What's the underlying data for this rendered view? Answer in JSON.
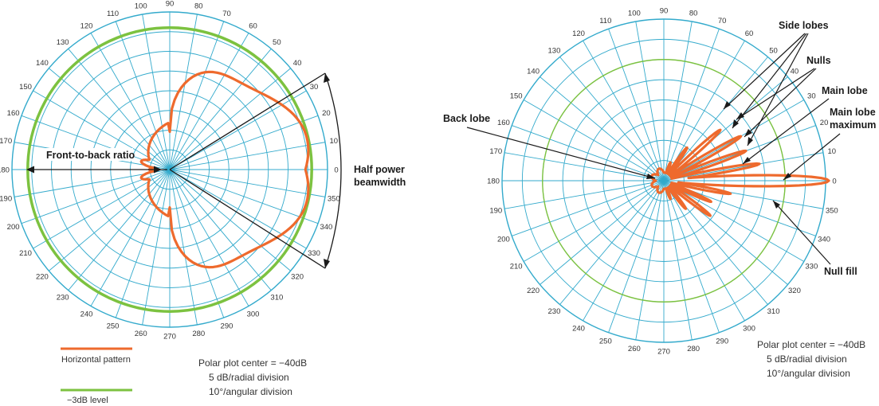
{
  "colors": {
    "grid": "#33aacc",
    "pattern": "#ee6a2d",
    "level_3db": "#7cc240",
    "annotation": "#1a1a1a",
    "text": "#333333"
  },
  "angle_labels": [
    "0",
    "10",
    "20",
    "30",
    "40",
    "50",
    "60",
    "70",
    "80",
    "90",
    "100",
    "110",
    "120",
    "130",
    "140",
    "150",
    "160",
    "170",
    "180",
    "190",
    "200",
    "210",
    "220",
    "230",
    "240",
    "250",
    "260",
    "270",
    "280",
    "290",
    "300",
    "310",
    "320",
    "330",
    "340",
    "350"
  ],
  "left_plot": {
    "annotations": {
      "front_to_back": "Front-to-back ratio",
      "half_power_line1": "Half power",
      "half_power_line2": "beamwidth"
    },
    "legend": {
      "horizontal_pattern": "Horizontal pattern",
      "level_3db": "−3dB level"
    },
    "notes": [
      "Polar plot center = −40dB",
      "5 dB/radial division",
      "10°/angular division"
    ]
  },
  "right_plot": {
    "annotations": {
      "side_lobes": "Side lobes",
      "nulls": "Nulls",
      "main_lobe": "Main lobe",
      "main_lobe_max_line1": "Main lobe",
      "main_lobe_max_line2": "maximum",
      "back_lobe": "Back lobe",
      "null_fill": "Null fill"
    },
    "notes": [
      "Polar plot center = −40dB",
      "5 dB/radial division",
      "10°/angular division"
    ]
  }
}
